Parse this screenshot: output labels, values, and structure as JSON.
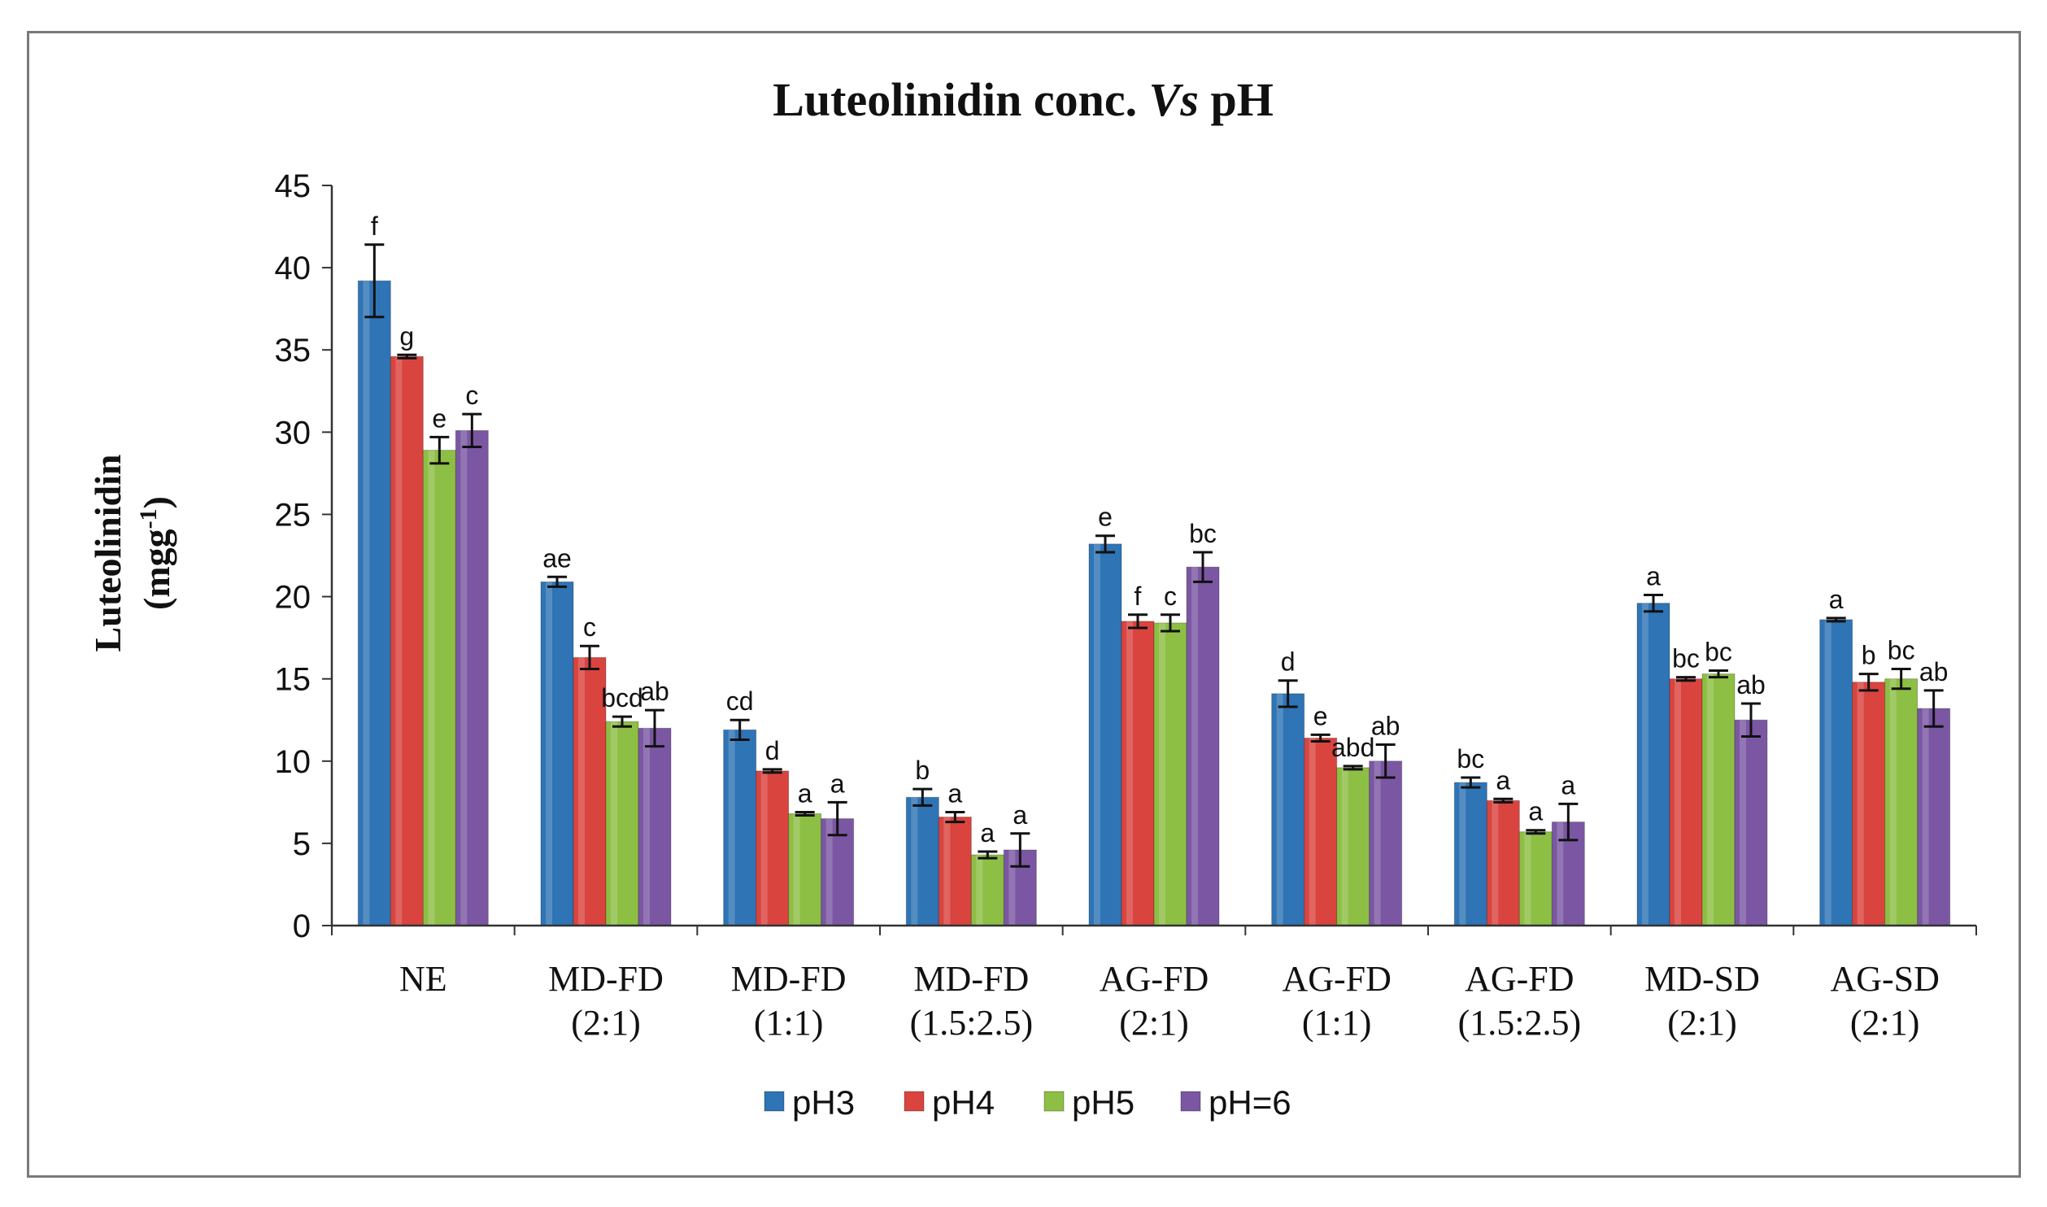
{
  "chart_data": {
    "type": "bar",
    "title_parts": [
      "Luteolinidin  conc. ",
      "Vs",
      " pH"
    ],
    "ylabel": "Luteolinidin",
    "ylabel_unit": [
      "(mgg",
      "-1",
      ")"
    ],
    "ylim": [
      0,
      45
    ],
    "ytick_step": 5,
    "ytick_labels": [
      "0",
      "5",
      "10",
      "15",
      "20",
      "25",
      "30",
      "35",
      "40",
      "45"
    ],
    "categories": [
      [
        "NE"
      ],
      [
        "MD-FD",
        "(2:1)"
      ],
      [
        "MD-FD",
        "(1:1)"
      ],
      [
        "MD-FD",
        "(1.5:2.5)"
      ],
      [
        "AG-FD",
        "(2:1)"
      ],
      [
        "AG-FD",
        "(1:1)"
      ],
      [
        "AG-FD",
        "(1.5:2.5)"
      ],
      [
        "MD-SD",
        "(2:1)"
      ],
      [
        "AG-SD",
        "(2:1)"
      ]
    ],
    "series": [
      {
        "name": "pH3",
        "color": "#2f74b5",
        "values": [
          39.2,
          20.9,
          11.9,
          7.8,
          23.2,
          14.1,
          8.7,
          19.6,
          18.6
        ],
        "errors": [
          2.2,
          0.3,
          0.6,
          0.5,
          0.5,
          0.8,
          0.3,
          0.5,
          0.1
        ],
        "labels": [
          "f",
          "ae",
          "cd",
          "b",
          "e",
          "d",
          "bc",
          "a",
          "a"
        ]
      },
      {
        "name": "pH4",
        "color": "#d9443f",
        "values": [
          34.6,
          16.3,
          9.4,
          6.6,
          18.5,
          11.4,
          7.6,
          15.0,
          14.8
        ],
        "errors": [
          0.1,
          0.7,
          0.1,
          0.3,
          0.4,
          0.2,
          0.1,
          0.1,
          0.5
        ],
        "labels": [
          "g",
          "c",
          "d",
          "a",
          "f",
          "e",
          "a",
          "bc",
          "b"
        ]
      },
      {
        "name": "pH5",
        "color": "#8dbf45",
        "values": [
          28.9,
          12.4,
          6.8,
          4.3,
          18.4,
          9.6,
          5.7,
          15.3,
          15.0
        ],
        "errors": [
          0.8,
          0.3,
          0.1,
          0.2,
          0.5,
          0.1,
          0.1,
          0.2,
          0.6
        ],
        "labels": [
          "e",
          "bcd",
          "a",
          "a",
          "c",
          "abd",
          "a",
          "bc",
          "bc"
        ]
      },
      {
        "name": "pH=6",
        "color": "#7b57a3",
        "values": [
          30.1,
          12.0,
          6.5,
          4.6,
          21.8,
          10.0,
          6.3,
          12.5,
          13.2
        ],
        "errors": [
          1.0,
          1.1,
          1.0,
          1.0,
          0.9,
          1.0,
          1.1,
          1.0,
          1.1
        ],
        "labels": [
          "c",
          "ab",
          "a",
          "a",
          "bc",
          "ab",
          "a",
          "ab",
          "ab"
        ]
      }
    ],
    "legend": [
      "pH3",
      "pH4",
      "pH5",
      "pH=6"
    ],
    "legend_position": "bottom-center",
    "grid": false
  }
}
